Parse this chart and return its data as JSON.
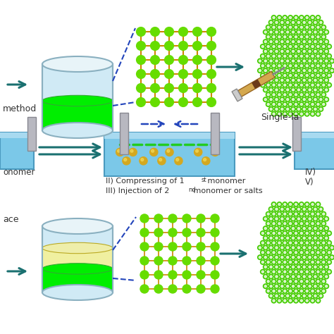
{
  "bg_color": "#ffffff",
  "teal_arrow": "#1a7070",
  "light_blue_cyl": "#d0eaf5",
  "cyl_edge": "#8ab0c0",
  "bright_green": "#00ee00",
  "gold": "#d4a820",
  "grid_node_green": "#66dd00",
  "grid_conn": "#cc8800",
  "hex_node_green": "#44cc00",
  "hex_bg": "#88ee00",
  "trough_blue": "#7bc8e8",
  "trough_dark": "#4a9abf",
  "pillar_gray": "#b8b8c0",
  "dashed_blue": "#2244bb",
  "text_color": "#333333",
  "text1": "Single-la",
  "text2": "method",
  "text3": "ace",
  "text4": "onomer",
  "text5_a": "II) Compressing of 1",
  "text5_sup": "st",
  "text5_b": " monomer",
  "text6_a": "III) Injection of 2",
  "text6_sup": "nd",
  "text6_b": " monomer or salts",
  "text7": "IV)",
  "text8": "V)"
}
